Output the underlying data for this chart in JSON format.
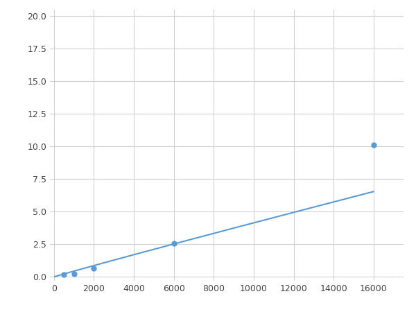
{
  "x": [
    125,
    500,
    1000,
    2000,
    6000,
    16000
  ],
  "y": [
    0.1,
    0.2,
    0.25,
    0.65,
    2.55,
    10.1
  ],
  "marker_x": [
    500,
    1000,
    2000,
    6000,
    16000
  ],
  "marker_y": [
    0.2,
    0.25,
    0.65,
    2.55,
    10.1
  ],
  "line_color": "#5b9bd5",
  "marker_color": "#5b9bd5",
  "marker_size": 5,
  "xlim": [
    -200,
    17500
  ],
  "ylim": [
    -0.3,
    20.5
  ],
  "yticks": [
    0.0,
    2.5,
    5.0,
    7.5,
    10.0,
    12.5,
    15.0,
    17.5,
    20.0
  ],
  "xticks": [
    0,
    2000,
    4000,
    6000,
    8000,
    10000,
    12000,
    14000,
    16000
  ],
  "grid_color": "#d0d0d0",
  "background_color": "#ffffff",
  "figure_bg": "#ffffff"
}
